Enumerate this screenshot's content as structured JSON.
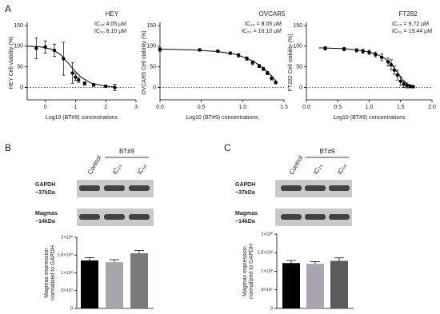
{
  "panel_labels": [
    "A",
    "B",
    "C"
  ],
  "chart_data": [
    {
      "type": "scatter",
      "title": "HEY",
      "annotations": [
        "IC₂₅   4.05 µM",
        "IC₅₀   8.10 µM"
      ],
      "xlabel": "Log10 (BT#9) concentrations",
      "ylabel": "HEY Cell viability (%)",
      "xlim": [
        -0.6,
        3
      ],
      "xticks": [
        0,
        1,
        2,
        3
      ],
      "ylim": [
        -30,
        150
      ],
      "yticks": [
        0,
        50,
        100,
        150
      ],
      "hline": 0,
      "series": [
        {
          "color": "#000000",
          "x": [
            -0.3,
            0,
            0.3,
            0.6,
            0.9,
            1.0,
            1.1,
            1.3,
            1.6,
            2.0,
            2.3
          ],
          "values": [
            95,
            98,
            90,
            70,
            35,
            25,
            18,
            10,
            6,
            3,
            0
          ],
          "errors": [
            25,
            15,
            15,
            40,
            25,
            8,
            6,
            4,
            3,
            3,
            8
          ]
        }
      ],
      "fit": {
        "x": [
          -0.6,
          -0.2,
          0.2,
          0.5,
          0.8,
          1.0,
          1.2,
          1.5,
          2.0,
          2.3
        ],
        "values": [
          100,
          99,
          93,
          80,
          55,
          38,
          24,
          11,
          3,
          1
        ]
      }
    },
    {
      "type": "scatter",
      "title": "OVCAR5",
      "annotations": [
        "IC₂₅ = 8.05 µM",
        "IC₅₀ = 16.10 µM"
      ],
      "xlabel": "Log10 (BT#9) concentrations",
      "ylabel": "OVCAR5 Cell viability (%)",
      "xlim": [
        0,
        1.5
      ],
      "xticks": [
        {
          "value": 0,
          "label": "0.0"
        },
        0.5,
        {
          "value": 1,
          "label": "1.0"
        },
        1.5
      ],
      "ylim": [
        -30,
        150
      ],
      "yticks": [
        0,
        50,
        100,
        150
      ],
      "hline": 0,
      "series": [
        {
          "color": "#000000",
          "x": [
            0,
            0.48,
            0.7,
            0.85,
            0.95,
            1.05,
            1.12,
            1.2,
            1.25,
            1.3,
            1.35,
            1.4
          ],
          "values": [
            92,
            91,
            88,
            83,
            78,
            70,
            60,
            52,
            45,
            35,
            22,
            12
          ],
          "errors": [
            4,
            3,
            3,
            3,
            4,
            4,
            5,
            4,
            4,
            4,
            4,
            3
          ]
        }
      ],
      "fit": {
        "x": [
          0,
          0.4,
          0.7,
          0.9,
          1.05,
          1.15,
          1.25,
          1.35,
          1.42
        ],
        "values": [
          93,
          91,
          87,
          81,
          71,
          61,
          47,
          28,
          12
        ]
      }
    },
    {
      "type": "scatter",
      "title": "FT282",
      "annotations": [
        "IC₂₅ = 9.72 µM",
        "IC₅₀ = 19.44 µM"
      ],
      "xlabel": "Log10 (BT#9) concentrations",
      "ylabel": "FT282 Cell viability (%)",
      "xlim": [
        0,
        2.0
      ],
      "xticks": [
        {
          "value": 0,
          "label": "0.0"
        },
        0.5,
        {
          "value": 1,
          "label": "1.0"
        },
        1.5,
        {
          "value": 2,
          "label": "2.0"
        }
      ],
      "ylim": [
        -30,
        150
      ],
      "yticks": [
        0,
        50,
        100,
        150
      ],
      "hline": 0,
      "series": [
        {
          "color": "#000000",
          "x": [
            0.3,
            0.6,
            0.8,
            0.9,
            1.0,
            1.1,
            1.2,
            1.3,
            1.35,
            1.4,
            1.45,
            1.5,
            1.55,
            1.6,
            1.65,
            1.7
          ],
          "values": [
            95,
            93,
            90,
            88,
            85,
            80,
            73,
            62,
            55,
            42,
            30,
            15,
            8,
            5,
            3,
            2
          ],
          "errors": [
            4,
            4,
            4,
            5,
            5,
            6,
            8,
            10,
            12,
            10,
            12,
            10,
            8,
            6,
            4,
            3
          ]
        }
      ],
      "fit": {
        "x": [
          0.2,
          0.6,
          0.9,
          1.1,
          1.25,
          1.35,
          1.45,
          1.55,
          1.65,
          1.7
        ],
        "values": [
          96,
          94,
          89,
          82,
          70,
          57,
          37,
          15,
          4,
          2
        ]
      }
    },
    {
      "type": "bar",
      "ylabel": [
        "Magmas expression",
        "normalized to GAPDH"
      ],
      "ylim": [
        0,
        200000000
      ],
      "yticks": [
        0,
        {
          "value": 50000000,
          "label": "5×10⁷"
        },
        {
          "value": 100000000,
          "label": "1×10⁸"
        },
        {
          "value": 150000000,
          "label": "1.5×10⁸"
        },
        {
          "value": 200000000,
          "label": "2×10⁸"
        }
      ],
      "colors": [
        "#000000",
        "#a8a5ad",
        "#7a7a7a"
      ],
      "values": [
        135000000,
        130000000,
        155000000
      ],
      "errors": [
        8000000,
        7000000,
        8000000
      ]
    },
    {
      "type": "bar",
      "ylabel": [
        "Magmas expression",
        "normalized to GAPDH"
      ],
      "ylim": [
        0,
        200000000
      ],
      "yticks": [
        0,
        {
          "value": 50000000,
          "label": "5×10⁷"
        },
        {
          "value": 100000000,
          "label": "1×10⁸"
        },
        {
          "value": 150000000,
          "label": "1.5×10⁸"
        },
        {
          "value": 200000000,
          "label": "2×10⁸"
        }
      ],
      "colors": [
        "#000000",
        "#a9a4b0",
        "#5b5b5b"
      ],
      "values": [
        122000000,
        120000000,
        128000000
      ],
      "errors": [
        7000000,
        6000000,
        8000000
      ]
    }
  ],
  "blots": [
    {
      "treatment": "BT#9",
      "lanes": [
        "Control",
        "IC₂₅",
        "IC₅₀"
      ],
      "bands": [
        [
          "GAPDH",
          "~37kDa"
        ],
        [
          "Magmas",
          "~14kDa"
        ]
      ]
    },
    {
      "treatment": "BT#9",
      "lanes": [
        "Control",
        "IC₂₅",
        "IC₅₀"
      ],
      "bands": [
        [
          "GAPDH",
          "~37kDa"
        ],
        [
          "Magmas",
          "~14kDa"
        ]
      ]
    }
  ]
}
